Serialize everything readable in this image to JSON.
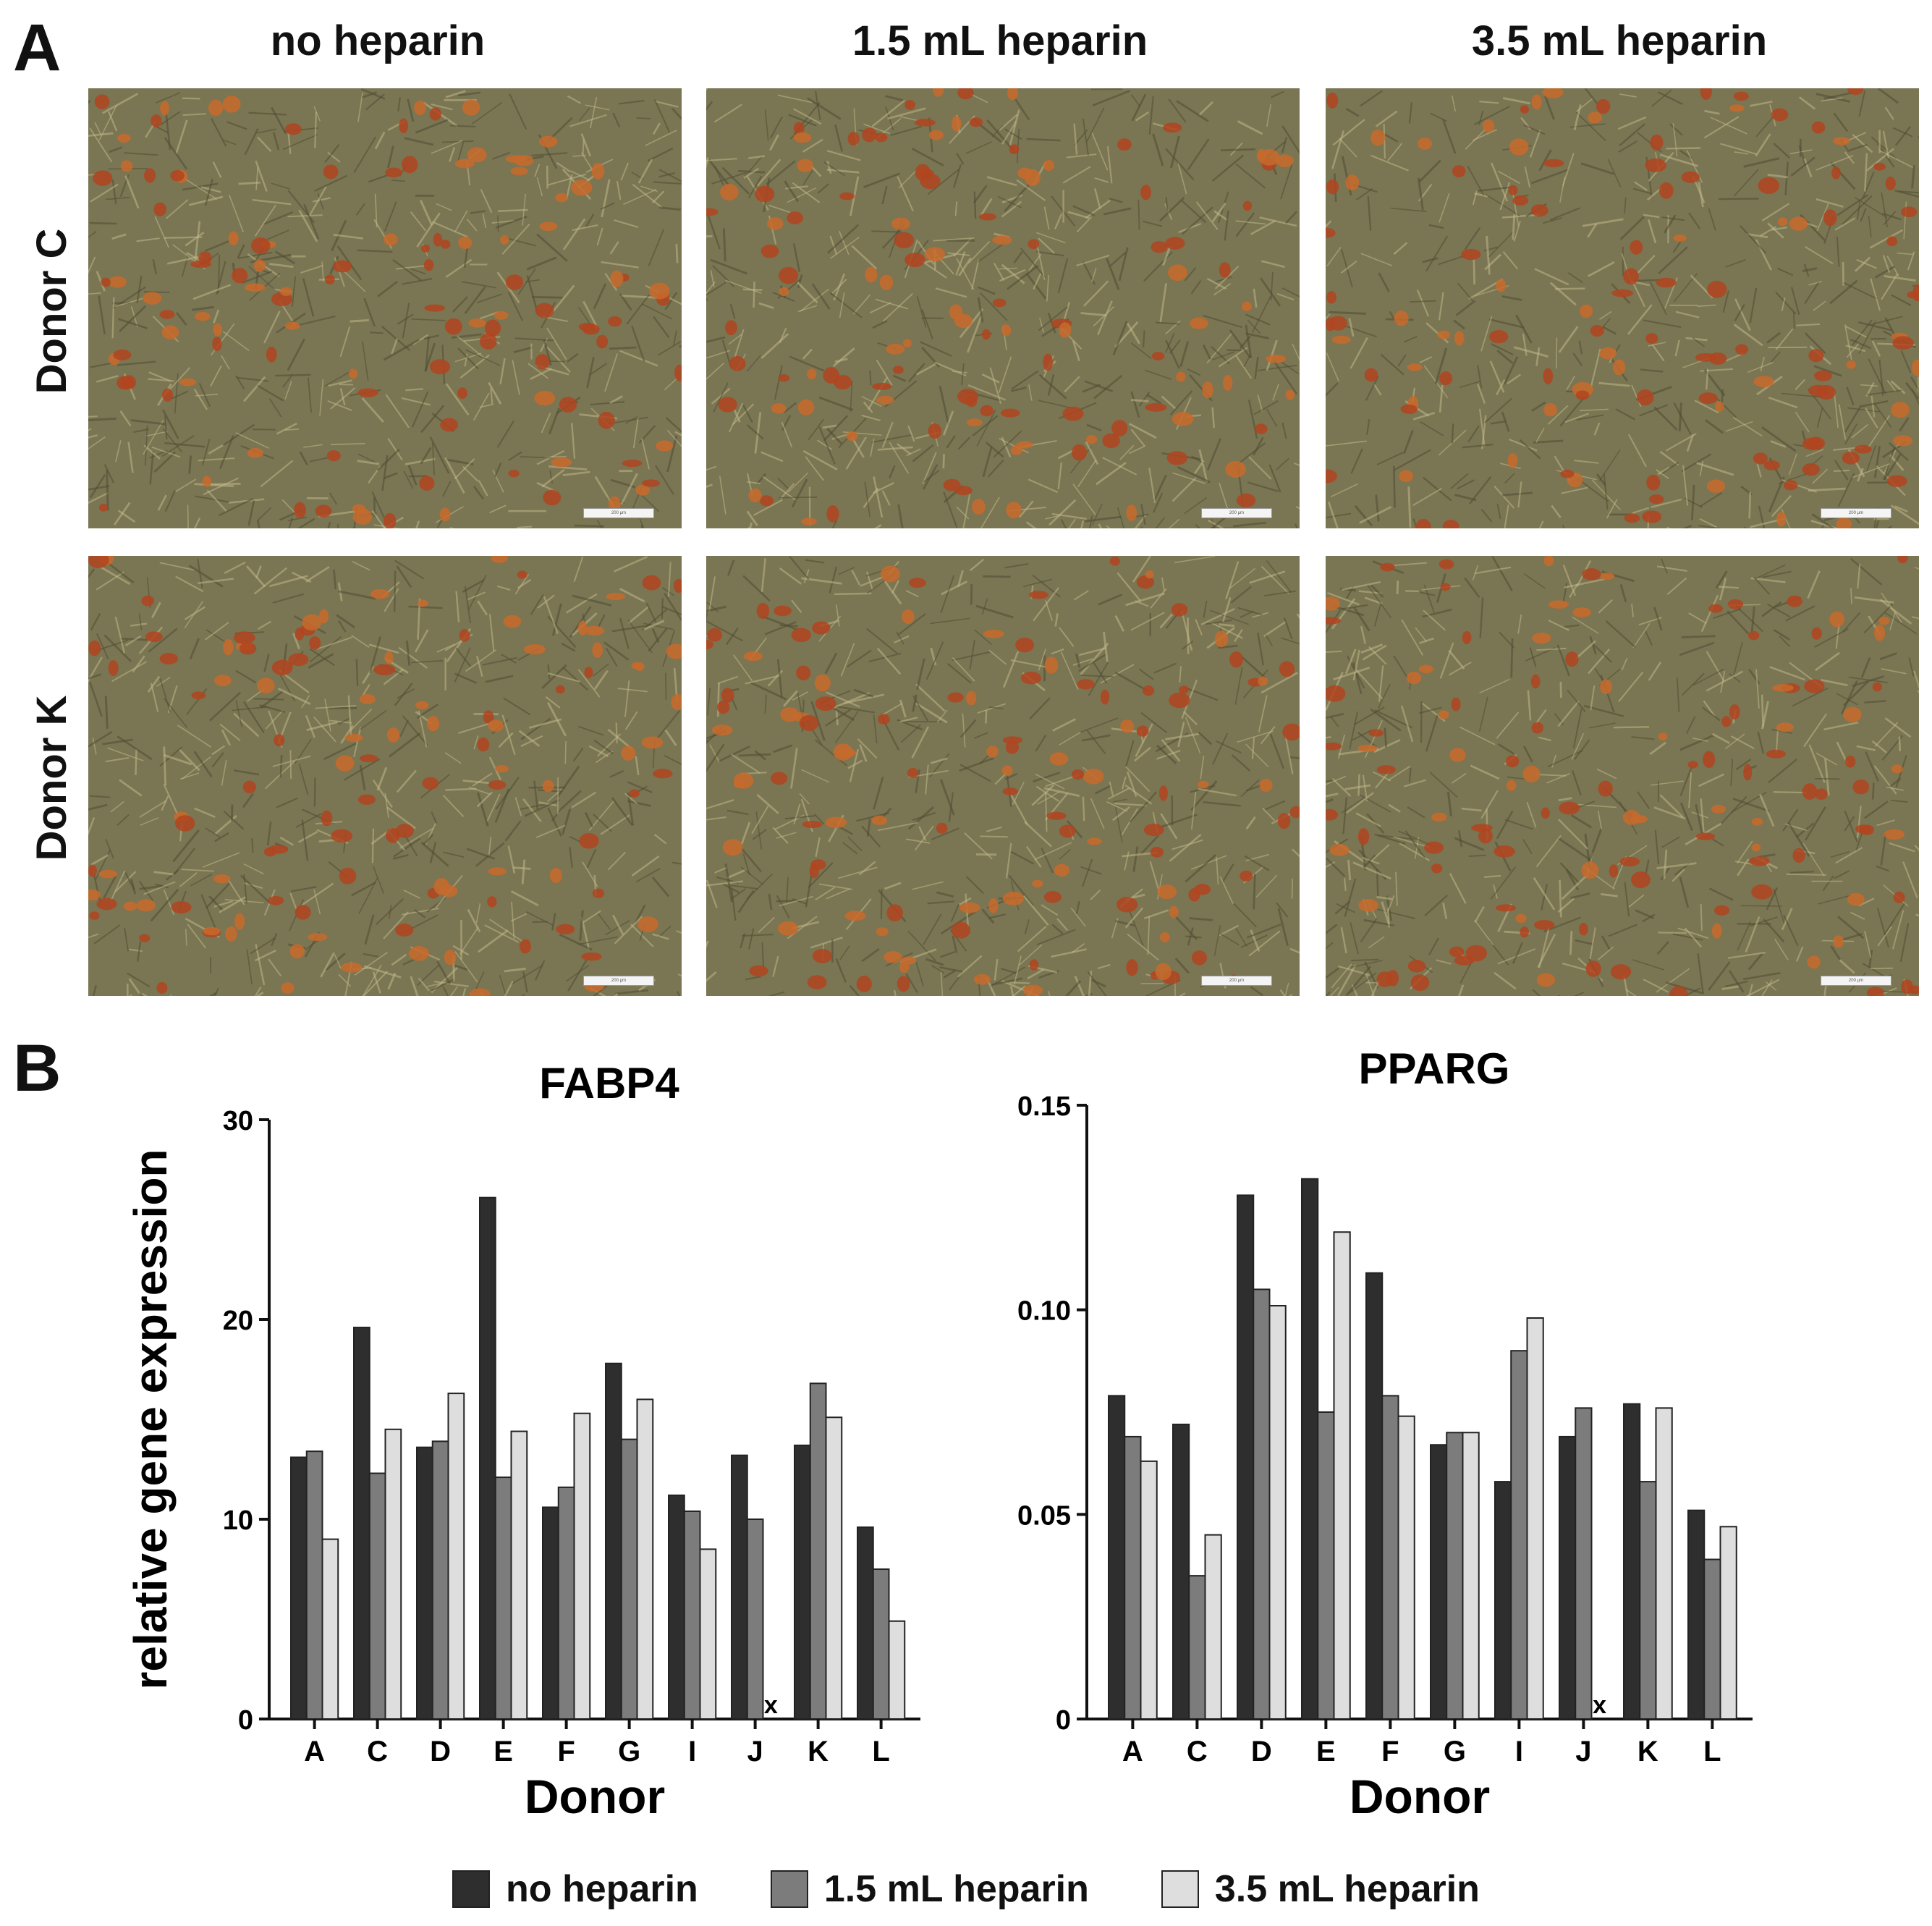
{
  "panel_a": {
    "letter": "A",
    "columns": [
      "no heparin",
      "1.5 mL heparin",
      "3.5 mL heparin"
    ],
    "rows": [
      "Donor C",
      "Donor K"
    ],
    "scale_bar_label": "200 µm"
  },
  "panel_b": {
    "letter": "B"
  },
  "legend": {
    "items": [
      {
        "label": "no heparin",
        "color": "#2e2e2e"
      },
      {
        "label": "1.5 mL heparin",
        "color": "#7c7c7c"
      },
      {
        "label": "3.5 mL heparin",
        "color": "#dedede"
      }
    ]
  },
  "chart_data": [
    {
      "type": "bar",
      "title": "FABP4",
      "xlabel": "Donor",
      "ylabel": "relative gene expression",
      "ylim": [
        0,
        30
      ],
      "yticks": [
        "0",
        "10",
        "20",
        "30"
      ],
      "categories": [
        "A",
        "C",
        "D",
        "E",
        "F",
        "G",
        "I",
        "J",
        "K",
        "L"
      ],
      "series": [
        {
          "name": "no heparin",
          "color": "#2e2e2e",
          "values": [
            13.1,
            19.6,
            13.6,
            26.1,
            10.6,
            17.8,
            11.2,
            13.2,
            13.7,
            9.6
          ]
        },
        {
          "name": "1.5 mL heparin",
          "color": "#7c7c7c",
          "values": [
            13.4,
            12.3,
            13.9,
            12.1,
            11.6,
            14.0,
            10.4,
            10.0,
            16.8,
            7.5
          ]
        },
        {
          "name": "3.5 mL heparin",
          "color": "#dedede",
          "values": [
            9.0,
            14.5,
            16.3,
            14.4,
            15.3,
            16.0,
            8.5,
            null,
            15.1,
            4.9
          ]
        }
      ],
      "missing_marker": "x",
      "grid": false
    },
    {
      "type": "bar",
      "title": "PPARG",
      "xlabel": "Donor",
      "ylabel": "",
      "ylim": [
        0,
        0.15
      ],
      "yticks": [
        "0",
        "0.05",
        "0.10",
        "0.15"
      ],
      "categories": [
        "A",
        "C",
        "D",
        "E",
        "F",
        "G",
        "I",
        "J",
        "K",
        "L"
      ],
      "series": [
        {
          "name": "no heparin",
          "color": "#2e2e2e",
          "values": [
            0.079,
            0.072,
            0.128,
            0.132,
            0.109,
            0.067,
            0.058,
            0.069,
            0.077,
            0.051
          ]
        },
        {
          "name": "1.5 mL heparin",
          "color": "#7c7c7c",
          "values": [
            0.069,
            0.035,
            0.105,
            0.075,
            0.079,
            0.07,
            0.09,
            0.076,
            0.058,
            0.039
          ]
        },
        {
          "name": "3.5 mL heparin",
          "color": "#dedede",
          "values": [
            0.063,
            0.045,
            0.101,
            0.119,
            0.074,
            0.07,
            0.098,
            null,
            0.076,
            0.047
          ]
        }
      ],
      "missing_marker": "x",
      "grid": false
    }
  ]
}
